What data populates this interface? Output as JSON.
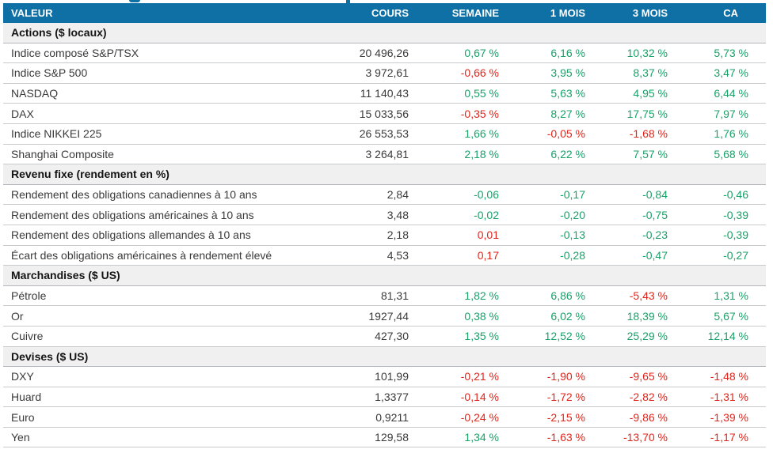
{
  "colors": {
    "header_bg": "#0F70A6",
    "positive": "#1AA169",
    "negative": "#E0261C",
    "section_bg": "#F0F0F1"
  },
  "table": {
    "columns": [
      {
        "label": "VALEUR"
      },
      {
        "label": "COURS"
      },
      {
        "label": "SEMAINE"
      },
      {
        "label": "1 MOIS"
      },
      {
        "label": "3 MOIS"
      },
      {
        "label": "CA"
      }
    ],
    "sections": [
      {
        "title": "Actions ($ locaux)",
        "rows": [
          {
            "label": "Indice composé S&P/TSX",
            "cours": "20 496,26",
            "changes": [
              {
                "text": "0,67 %",
                "tone": "pos"
              },
              {
                "text": "6,16 %",
                "tone": "pos"
              },
              {
                "text": "10,32 %",
                "tone": "pos"
              },
              {
                "text": "5,73 %",
                "tone": "pos"
              }
            ]
          },
          {
            "label": "Indice S&P 500",
            "cours": "3 972,61",
            "changes": [
              {
                "text": "-0,66 %",
                "tone": "neg"
              },
              {
                "text": "3,95 %",
                "tone": "pos"
              },
              {
                "text": "8,37 %",
                "tone": "pos"
              },
              {
                "text": "3,47 %",
                "tone": "pos"
              }
            ]
          },
          {
            "label": "NASDAQ",
            "cours": "11 140,43",
            "changes": [
              {
                "text": "0,55 %",
                "tone": "pos"
              },
              {
                "text": "5,63 %",
                "tone": "pos"
              },
              {
                "text": "4,95 %",
                "tone": "pos"
              },
              {
                "text": "6,44 %",
                "tone": "pos"
              }
            ]
          },
          {
            "label": "DAX",
            "cours": "15 033,56",
            "changes": [
              {
                "text": "-0,35 %",
                "tone": "neg"
              },
              {
                "text": "8,27 %",
                "tone": "pos"
              },
              {
                "text": "17,75 %",
                "tone": "pos"
              },
              {
                "text": "7,97 %",
                "tone": "pos"
              }
            ]
          },
          {
            "label": "Indice NIKKEI 225",
            "cours": "26 553,53",
            "changes": [
              {
                "text": "1,66 %",
                "tone": "pos"
              },
              {
                "text": "-0,05 %",
                "tone": "neg"
              },
              {
                "text": "-1,68 %",
                "tone": "neg"
              },
              {
                "text": "1,76 %",
                "tone": "pos"
              }
            ]
          },
          {
            "label": "Shanghai Composite",
            "cours": "3 264,81",
            "changes": [
              {
                "text": "2,18 %",
                "tone": "pos"
              },
              {
                "text": "6,22 %",
                "tone": "pos"
              },
              {
                "text": "7,57 %",
                "tone": "pos"
              },
              {
                "text": "5,68 %",
                "tone": "pos"
              }
            ]
          }
        ]
      },
      {
        "title": "Revenu fixe (rendement en %)",
        "rows": [
          {
            "label": "Rendement des obligations canadiennes à 10 ans",
            "cours": "2,84",
            "changes": [
              {
                "text": "-0,06",
                "tone": "pos"
              },
              {
                "text": "-0,17",
                "tone": "pos"
              },
              {
                "text": "-0,84",
                "tone": "pos"
              },
              {
                "text": "-0,46",
                "tone": "pos"
              }
            ]
          },
          {
            "label": "Rendement des obligations américaines à 10 ans",
            "cours": "3,48",
            "changes": [
              {
                "text": "-0,02",
                "tone": "pos"
              },
              {
                "text": "-0,20",
                "tone": "pos"
              },
              {
                "text": "-0,75",
                "tone": "pos"
              },
              {
                "text": "-0,39",
                "tone": "pos"
              }
            ]
          },
          {
            "label": "Rendement des obligations allemandes à 10 ans",
            "cours": "2,18",
            "changes": [
              {
                "text": "0,01",
                "tone": "neg"
              },
              {
                "text": "-0,13",
                "tone": "pos"
              },
              {
                "text": "-0,23",
                "tone": "pos"
              },
              {
                "text": "-0,39",
                "tone": "pos"
              }
            ]
          },
          {
            "label": "Écart des obligations américaines à rendement élevé",
            "cours": "4,53",
            "changes": [
              {
                "text": "0,17",
                "tone": "neg"
              },
              {
                "text": "-0,28",
                "tone": "pos"
              },
              {
                "text": "-0,47",
                "tone": "pos"
              },
              {
                "text": "-0,27",
                "tone": "pos"
              }
            ]
          }
        ]
      },
      {
        "title": "Marchandises ($ US)",
        "rows": [
          {
            "label": "Pétrole",
            "cours": "81,31",
            "changes": [
              {
                "text": "1,82 %",
                "tone": "pos"
              },
              {
                "text": "6,86 %",
                "tone": "pos"
              },
              {
                "text": "-5,43 %",
                "tone": "neg"
              },
              {
                "text": "1,31 %",
                "tone": "pos"
              }
            ]
          },
          {
            "label": "Or",
            "cours": "1927,44",
            "changes": [
              {
                "text": "0,38 %",
                "tone": "pos"
              },
              {
                "text": "6,02 %",
                "tone": "pos"
              },
              {
                "text": "18,39 %",
                "tone": "pos"
              },
              {
                "text": "5,67 %",
                "tone": "pos"
              }
            ]
          },
          {
            "label": "Cuivre",
            "cours": "427,30",
            "changes": [
              {
                "text": "1,35 %",
                "tone": "pos"
              },
              {
                "text": "12,52 %",
                "tone": "pos"
              },
              {
                "text": "25,29 %",
                "tone": "pos"
              },
              {
                "text": "12,14 %",
                "tone": "pos"
              }
            ]
          }
        ]
      },
      {
        "title": "Devises ($ US)",
        "rows": [
          {
            "label": "DXY",
            "cours": "101,99",
            "changes": [
              {
                "text": "-0,21 %",
                "tone": "neg"
              },
              {
                "text": "-1,90 %",
                "tone": "neg"
              },
              {
                "text": "-9,65 %",
                "tone": "neg"
              },
              {
                "text": "-1,48 %",
                "tone": "neg"
              }
            ]
          },
          {
            "label": "Huard",
            "cours": "1,3377",
            "changes": [
              {
                "text": "-0,14 %",
                "tone": "neg"
              },
              {
                "text": "-1,72 %",
                "tone": "neg"
              },
              {
                "text": "-2,82 %",
                "tone": "neg"
              },
              {
                "text": "-1,31 %",
                "tone": "neg"
              }
            ]
          },
          {
            "label": "Euro",
            "cours": "0,9211",
            "changes": [
              {
                "text": "-0,24 %",
                "tone": "neg"
              },
              {
                "text": "-2,15 %",
                "tone": "neg"
              },
              {
                "text": "-9,86 %",
                "tone": "neg"
              },
              {
                "text": "-1,39 %",
                "tone": "neg"
              }
            ]
          },
          {
            "label": "Yen",
            "cours": "129,58",
            "changes": [
              {
                "text": "1,34 %",
                "tone": "pos"
              },
              {
                "text": "-1,63 %",
                "tone": "neg"
              },
              {
                "text": "-13,70 %",
                "tone": "neg"
              },
              {
                "text": "-1,17 %",
                "tone": "neg"
              }
            ]
          }
        ]
      }
    ]
  }
}
